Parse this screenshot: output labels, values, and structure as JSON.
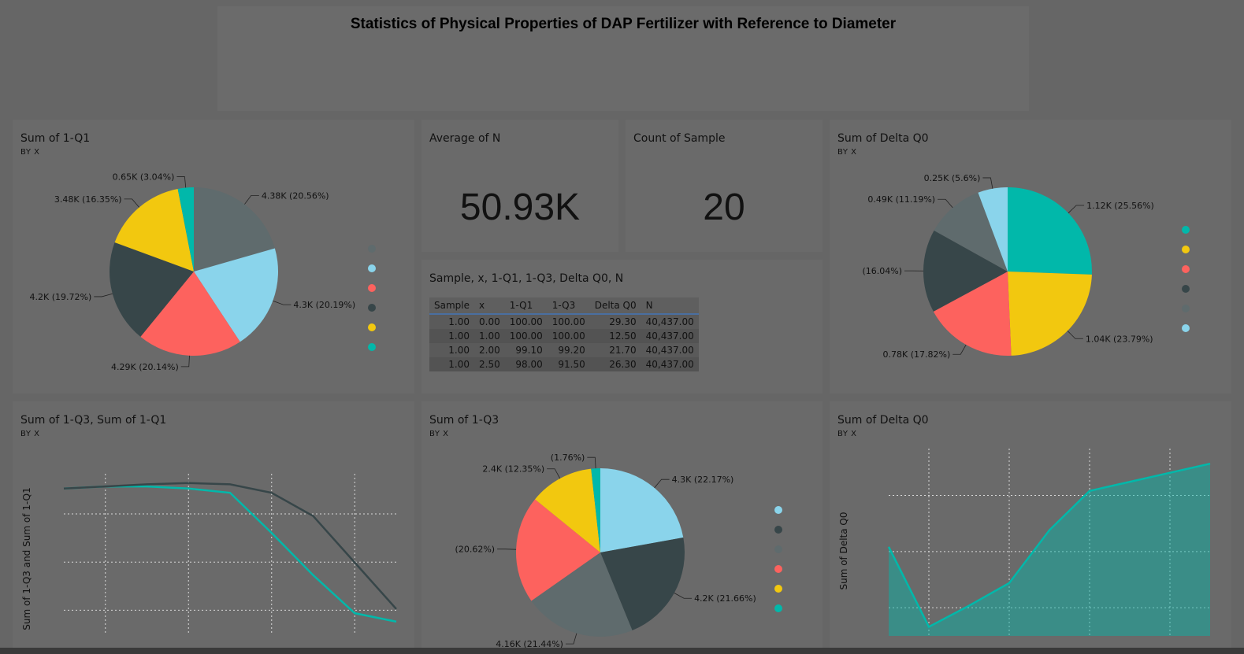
{
  "report": {
    "title": "Statistics of Physical Properties of DAP Fertilizer with Reference to Diameter"
  },
  "colors": {
    "teal": "#01B8AA",
    "dark": "#374649",
    "red": "#FD625E",
    "yellow": "#F2C80F",
    "slate": "#5F6B6D",
    "lightblue": "#8AD4EB"
  },
  "panels": {
    "pie_q1": {
      "title": "Sum of 1-Q1",
      "subtitle": "BY X",
      "chart_data": {
        "type": "pie",
        "slices": [
          {
            "value": 4.38,
            "color": "#5F6B6D",
            "label": "4.38K (20.56%)"
          },
          {
            "value": 4.3,
            "color": "#8AD4EB",
            "label": "4.3K (20.19%)"
          },
          {
            "value": 4.29,
            "color": "#FD625E",
            "label": "4.29K (20.14%)"
          },
          {
            "value": 4.2,
            "color": "#374649",
            "label": "4.2K (19.72%)"
          },
          {
            "value": 3.48,
            "color": "#F2C80F",
            "label": "3.48K (16.35%)"
          },
          {
            "value": 0.65,
            "color": "#01B8AA",
            "label": "0.65K (3.04%)"
          }
        ],
        "legend_colors": [
          "#5F6B6D",
          "#8AD4EB",
          "#FD625E",
          "#374649",
          "#F2C80F",
          "#01B8AA"
        ]
      }
    },
    "kpi_n": {
      "title": "Average of N",
      "value": "50.93K"
    },
    "kpi_count": {
      "title": "Count of Sample",
      "value": "20"
    },
    "table": {
      "title": "Sample, x, 1-Q1, 1-Q3, Delta Q0, N",
      "columns": [
        "Sample",
        "x",
        "1-Q1",
        "1-Q3",
        "Delta Q0",
        "N"
      ],
      "rows": [
        [
          "1.00",
          "0.00",
          "100.00",
          "100.00",
          "29.30",
          "40,437.00"
        ],
        [
          "1.00",
          "1.00",
          "100.00",
          "100.00",
          "12.50",
          "40,437.00"
        ],
        [
          "1.00",
          "2.00",
          "99.10",
          "99.20",
          "21.70",
          "40,437.00"
        ],
        [
          "1.00",
          "2.50",
          "98.00",
          "91.50",
          "26.30",
          "40,437.00"
        ]
      ]
    },
    "pie_dq0": {
      "title": "Sum of Delta Q0",
      "subtitle": "BY X",
      "chart_data": {
        "type": "pie",
        "slices": [
          {
            "value": 1.12,
            "color": "#01B8AA",
            "label": "1.12K (25.56%)"
          },
          {
            "value": 1.04,
            "color": "#F2C80F",
            "label": "1.04K (23.79%)"
          },
          {
            "value": 0.78,
            "color": "#FD625E",
            "label": "0.78K (17.82%)"
          },
          {
            "value": 0.7,
            "color": "#374649",
            "label": "(16.04%)"
          },
          {
            "value": 0.49,
            "color": "#5F6B6D",
            "label": "0.49K (11.19%)"
          },
          {
            "value": 0.25,
            "color": "#8AD4EB",
            "label": "0.25K (5.6%)"
          }
        ],
        "legend_colors": [
          "#01B8AA",
          "#F2C80F",
          "#FD625E",
          "#374649",
          "#5F6B6D",
          "#8AD4EB"
        ]
      }
    },
    "line_q": {
      "title": "Sum of 1-Q3, Sum of 1-Q1",
      "subtitle": "BY X",
      "ylabel": "Sum of 1-Q3 and Sum of 1-Q1",
      "chart_data": {
        "type": "line",
        "x": [
          0,
          1,
          2,
          3,
          4,
          5,
          6,
          7,
          8
        ],
        "ylim": [
          0.5,
          4.3
        ],
        "series": [
          {
            "color": "#01B8AA",
            "values": [
              3.95,
              4.0,
              4.0,
              3.95,
              3.85,
              2.9,
              1.9,
              1.0,
              0.8
            ]
          },
          {
            "color": "#374649",
            "values": [
              3.95,
              4.0,
              4.05,
              4.08,
              4.05,
              3.85,
              3.3,
              2.2,
              1.1
            ]
          }
        ]
      }
    },
    "pie_q3": {
      "title": "Sum of 1-Q3",
      "subtitle": "BY X",
      "chart_data": {
        "type": "pie",
        "slices": [
          {
            "value": 4.3,
            "color": "#8AD4EB",
            "label": "4.3K (22.17%)"
          },
          {
            "value": 4.2,
            "color": "#374649",
            "label": "4.2K (21.66%)"
          },
          {
            "value": 4.16,
            "color": "#5F6B6D",
            "label": "4.16K (21.44%)"
          },
          {
            "value": 4.0,
            "color": "#FD625E",
            "label": "(20.62%)"
          },
          {
            "value": 2.4,
            "color": "#F2C80F",
            "label": "2.4K (12.35%)"
          },
          {
            "value": 0.34,
            "color": "#01B8AA",
            "label": "(1.76%)"
          }
        ],
        "legend_colors": [
          "#8AD4EB",
          "#374649",
          "#5F6B6D",
          "#FD625E",
          "#F2C80F",
          "#01B8AA"
        ]
      }
    },
    "area_dq0": {
      "title": "Sum of Delta Q0",
      "subtitle": "BY X",
      "ylabel": "Sum of Delta Q0",
      "chart_data": {
        "type": "area",
        "x": [
          0,
          1,
          2,
          3,
          4,
          5,
          6,
          7,
          8
        ],
        "ylim": [
          0,
          1240
        ],
        "series": [
          {
            "color": "#01B8AA",
            "values": [
              590,
              60,
              200,
              350,
              700,
              960,
              1020,
              1080,
              1140
            ]
          }
        ]
      }
    }
  }
}
